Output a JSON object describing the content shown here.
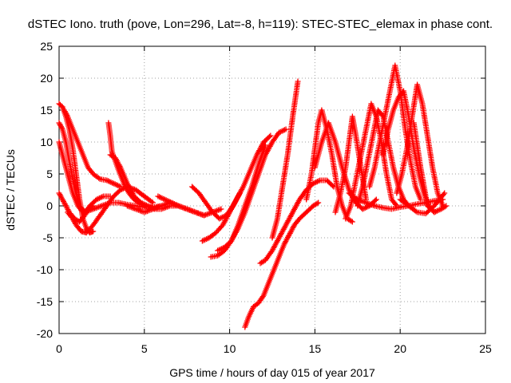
{
  "chart_data": {
    "type": "scatter",
    "title": "dSTEC Iono. truth (pove, Lon=296, Lat=-8, h=119): STEC-STEC_elemax in phase cont.",
    "xlabel": "GPS time / hours of day 015 of year 2017",
    "ylabel": "dSTEC  / TECUs",
    "xlim": [
      0,
      25
    ],
    "ylim": [
      -20,
      25
    ],
    "x_ticks": [
      0,
      5,
      10,
      15,
      20,
      25
    ],
    "y_ticks": [
      -20,
      -15,
      -10,
      -5,
      0,
      5,
      10,
      15,
      20,
      25
    ],
    "grid": true,
    "marker": "+",
    "color": "#ff0000",
    "series": [
      {
        "x": [
          0.0,
          0.2,
          0.4,
          0.6,
          0.8,
          1.0,
          1.2,
          1.4,
          1.6,
          1.8,
          2.0
        ],
        "y": [
          16,
          15.5,
          14,
          12,
          9,
          5,
          1,
          -2,
          -3.5,
          -4.2,
          -4
        ]
      },
      {
        "x": [
          0.0,
          0.2,
          0.4,
          0.6,
          0.9,
          1.2,
          1.5,
          1.8
        ],
        "y": [
          13,
          12,
          10,
          7,
          3,
          0,
          -1,
          -0.5
        ]
      },
      {
        "x": [
          0.0,
          0.2,
          0.5,
          0.8,
          1.1,
          1.4,
          1.7,
          2.0
        ],
        "y": [
          10,
          8,
          5,
          2,
          0,
          -1,
          -0.5,
          0
        ]
      },
      {
        "x": [
          0.0,
          0.3,
          0.6,
          0.9,
          1.2,
          1.5,
          1.8,
          2.2,
          2.6,
          3.0
        ],
        "y": [
          2,
          0.5,
          -1,
          -2,
          -2.5,
          -1.5,
          0,
          1,
          1.5,
          1.5
        ]
      },
      {
        "x": [
          0.3,
          0.5,
          0.8,
          1.1,
          1.4,
          1.7,
          2.0,
          2.4,
          2.8,
          3.2,
          3.6
        ],
        "y": [
          15,
          14,
          12,
          10,
          8,
          6,
          5,
          4.2,
          4,
          3.5,
          3
        ]
      },
      {
        "x": [
          0.5,
          0.8,
          1.0,
          1.3,
          1.6,
          2.0,
          2.4,
          2.8,
          3.2,
          3.6,
          4.0,
          4.5,
          5.0,
          5.5
        ],
        "y": [
          -1,
          -2,
          -3,
          -4,
          -4.2,
          -3,
          -1.5,
          0,
          1.5,
          2.5,
          3,
          2.5,
          1.5,
          0.5
        ]
      },
      {
        "x": [
          1.5,
          2.0,
          2.5,
          3.0,
          3.5,
          4.0,
          4.5,
          5.0,
          5.5,
          6.0
        ],
        "y": [
          -1,
          -0.5,
          0,
          0.5,
          0.5,
          0.2,
          0,
          -0.2,
          -0.2,
          0
        ]
      },
      {
        "x": [
          2.9,
          3.0,
          3.1,
          3.3,
          3.5,
          3.8,
          4.1,
          4.4,
          4.8,
          5.2
        ],
        "y": [
          13,
          11,
          8.5,
          7,
          5.5,
          3.5,
          2,
          1,
          0.3,
          -0.2
        ]
      },
      {
        "x": [
          3.0,
          3.3,
          3.6,
          4.0,
          4.4,
          4.8,
          5.2,
          5.6,
          6.0,
          6.5,
          7.0
        ],
        "y": [
          8,
          7.5,
          6,
          3.5,
          1.5,
          0.5,
          0,
          -0.5,
          -0.5,
          0,
          0
        ]
      },
      {
        "x": [
          4.0,
          4.5,
          5.0,
          5.5,
          6.0,
          6.5,
          7.0,
          7.5,
          8.0,
          8.5
        ],
        "y": [
          0,
          -0.5,
          -1,
          -0.5,
          0,
          0.5,
          0,
          -0.5,
          -1,
          -1.5
        ]
      },
      {
        "x": [
          5.8,
          6.2,
          6.6,
          7.0,
          7.5,
          8.0,
          8.5,
          9.0,
          9.5
        ],
        "y": [
          1.5,
          1,
          0.5,
          0,
          -0.5,
          -1,
          -1.5,
          -1,
          -0.5
        ]
      },
      {
        "x": [
          7.8,
          8.2,
          8.6,
          9.0,
          9.4,
          9.8,
          10.2,
          10.6
        ],
        "y": [
          3,
          2,
          0.5,
          -1,
          -2,
          -1.5,
          0,
          2
        ]
      },
      {
        "x": [
          8.4,
          8.8,
          9.2,
          9.6,
          10.0,
          10.4,
          10.8,
          11.2,
          11.6,
          12.0,
          12.4
        ],
        "y": [
          -5.5,
          -5,
          -4.2,
          -3,
          -1,
          1,
          3,
          5.5,
          8,
          10,
          11
        ]
      },
      {
        "x": [
          8.9,
          9.3,
          9.7,
          10.1,
          10.5,
          10.9,
          11.3,
          11.7,
          12.1
        ],
        "y": [
          -8,
          -7.8,
          -7,
          -5.5,
          -3,
          0,
          3,
          6.5,
          9.5
        ]
      },
      {
        "x": [
          9.3,
          9.7,
          10.1,
          10.5,
          10.9,
          11.3,
          11.7,
          12.1,
          12.5,
          12.9,
          13.3
        ],
        "y": [
          -7,
          -6.5,
          -5.5,
          -3.5,
          -1,
          2,
          5,
          8,
          10,
          11.5,
          12
        ]
      },
      {
        "x": [
          10.9,
          11.1,
          11.4,
          11.7,
          12.0,
          12.3,
          12.6,
          12.9,
          13.2,
          13.5,
          13.8,
          14.1,
          14.5,
          14.9,
          15.2
        ],
        "y": [
          -19,
          -17.5,
          -15.8,
          -15.2,
          -14,
          -12,
          -10,
          -8,
          -6,
          -4.5,
          -3,
          -2,
          -1,
          0,
          0.5
        ]
      },
      {
        "x": [
          11.8,
          12.1,
          12.5,
          12.9,
          13.3,
          13.7,
          14.1,
          14.5,
          14.9,
          15.3,
          15.7,
          16.1
        ],
        "y": [
          -9,
          -8.5,
          -7,
          -5,
          -3,
          -1,
          1,
          2.5,
          3.5,
          4,
          4,
          3
        ]
      },
      {
        "x": [
          12.5,
          12.8,
          13.1,
          13.4,
          13.7,
          14.0
        ],
        "y": [
          -5,
          -2,
          3,
          8,
          14,
          19.5
        ]
      },
      {
        "x": [
          14.5,
          14.8,
          15.0,
          15.2,
          15.4,
          15.7,
          16.0,
          16.3,
          16.6,
          16.9,
          17.2
        ],
        "y": [
          1,
          5,
          9,
          13,
          15,
          12,
          8,
          3,
          0,
          -2,
          -2.5
        ]
      },
      {
        "x": [
          15.0,
          15.4,
          15.8,
          16.2,
          16.6,
          17.0,
          17.4,
          17.8,
          18.2,
          18.6
        ],
        "y": [
          6,
          10,
          13,
          10,
          6,
          2.5,
          0.5,
          -0.5,
          0,
          1
        ]
      },
      {
        "x": [
          16.2,
          16.5,
          16.8,
          17.0,
          17.2,
          17.4,
          17.7,
          18.0
        ],
        "y": [
          -1,
          2,
          6,
          10,
          14,
          11,
          6,
          1
        ]
      },
      {
        "x": [
          16.8,
          17.1,
          17.4,
          17.7,
          18.0,
          18.3,
          18.6,
          18.9,
          19.2,
          19.5,
          19.8
        ],
        "y": [
          -2,
          0,
          4,
          8,
          12,
          16,
          14,
          10,
          5,
          1,
          0
        ]
      },
      {
        "x": [
          17.5,
          17.8,
          18.1,
          18.4,
          18.7,
          19.0,
          19.3,
          19.6,
          19.9,
          20.2,
          20.5
        ],
        "y": [
          0,
          3,
          7,
          11,
          15,
          14,
          10,
          6,
          3,
          1,
          0
        ]
      },
      {
        "x": [
          18.2,
          18.5,
          18.8,
          19.1,
          19.4,
          19.7,
          20.0,
          20.3,
          20.6,
          20.9,
          21.2
        ],
        "y": [
          3,
          6,
          10,
          14,
          18,
          22,
          18,
          12,
          7,
          3,
          1
        ]
      },
      {
        "x": [
          19.0,
          19.3,
          19.6,
          19.9,
          20.2,
          20.5,
          20.8,
          21.1,
          21.4,
          21.7,
          22.0
        ],
        "y": [
          8,
          12,
          15,
          17,
          18,
          14,
          9,
          5,
          2,
          0,
          -1
        ]
      },
      {
        "x": [
          19.8,
          20.1,
          20.4,
          20.7,
          21.0,
          21.3,
          21.6,
          21.9,
          22.2,
          22.5
        ],
        "y": [
          2,
          5,
          9,
          14,
          19,
          16,
          11,
          6,
          2,
          0
        ]
      },
      {
        "x": [
          17.0,
          17.5,
          18.0,
          18.5,
          19.0,
          19.5,
          20.0,
          20.5,
          21.0,
          21.5,
          22.0,
          22.5
        ],
        "y": [
          2,
          1,
          0.5,
          0,
          -0.3,
          -0.5,
          -0.2,
          0,
          0.3,
          0.5,
          0.8,
          1
        ]
      },
      {
        "x": [
          20.0,
          20.5,
          21.0,
          21.5,
          22.0,
          22.3,
          22.6
        ],
        "y": [
          1,
          0,
          -1,
          -1.2,
          0,
          1,
          2
        ]
      },
      {
        "x": [
          20.8,
          21.2,
          21.6,
          22.0,
          22.4,
          22.7
        ],
        "y": [
          13,
          6,
          0,
          -1,
          -0.5,
          0
        ]
      }
    ]
  }
}
